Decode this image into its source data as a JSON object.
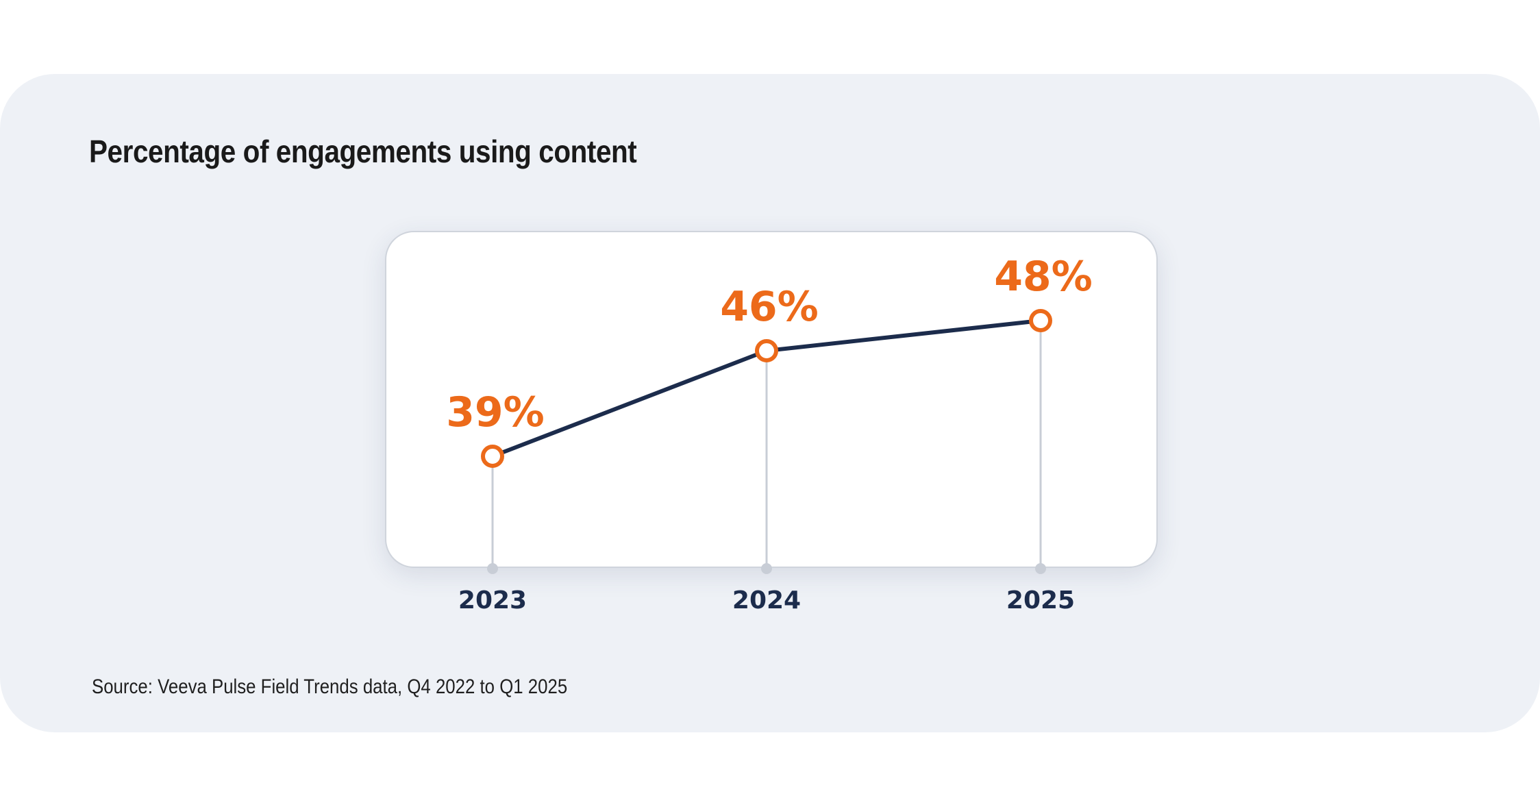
{
  "title": "Percentage of engagements using content",
  "source": "Source: Veeva Pulse Field Trends data, Q4 2022 to Q1 2025",
  "colors": {
    "line": "#1c2c4c",
    "marker": "#ec6a1a",
    "stem": "#c8cdd6",
    "panel": "#eef1f6"
  },
  "chart_data": {
    "type": "line",
    "title": "Percentage of engagements using content",
    "xlabel": "",
    "ylabel": "",
    "categories": [
      "2023",
      "2024",
      "2025"
    ],
    "values": [
      39,
      46,
      48
    ],
    "value_labels": [
      "39%",
      "46%",
      "48%"
    ],
    "unit": "%",
    "grid": false,
    "legend": "none"
  }
}
